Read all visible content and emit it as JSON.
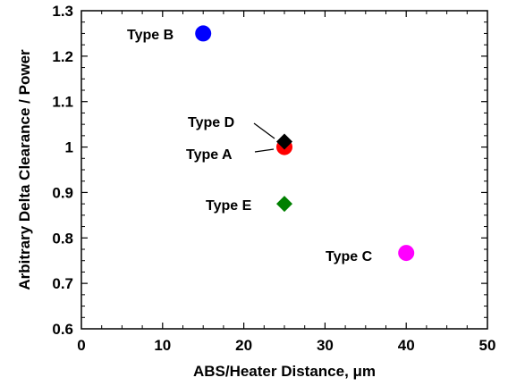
{
  "chart_data": {
    "type": "scatter",
    "title": "",
    "xlabel": "ABS/Heater Distance, μm",
    "ylabel": "Arbitrary Delta Clearance / Power",
    "xlim": [
      0,
      50
    ],
    "ylim": [
      0.6,
      1.3
    ],
    "x_ticks": [
      "0",
      "10",
      "20",
      "30",
      "40",
      "50"
    ],
    "y_ticks": [
      "0.6",
      "0.7",
      "0.8",
      "0.9",
      "1",
      "1.1",
      "1.2",
      "1.3"
    ],
    "grid": false,
    "legend": "none",
    "points": [
      {
        "label": "Type A",
        "x": 25,
        "y": 1.0,
        "color": "#ff0000",
        "marker": "circle"
      },
      {
        "label": "Type B",
        "x": 15,
        "y": 1.25,
        "color": "#0000ff",
        "marker": "circle"
      },
      {
        "label": "Type C",
        "x": 40,
        "y": 0.767,
        "color": "#ff00ff",
        "marker": "circle"
      },
      {
        "label": "Type D",
        "x": 25,
        "y": 1.012,
        "color": "#000000",
        "marker": "diamond"
      },
      {
        "label": "Type E",
        "x": 25,
        "y": 0.875,
        "color": "#008000",
        "marker": "diamond"
      }
    ]
  }
}
